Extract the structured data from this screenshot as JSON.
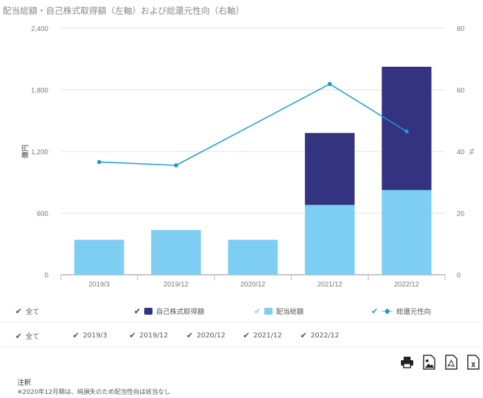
{
  "title": "配当総額・自己株式取得額（左軸）および総還元性向（右軸）",
  "chart_data": {
    "type": "bar+line",
    "title": "配当総額・自己株式取得額（左軸）および総還元性向（右軸）",
    "categories": [
      "2019/3",
      "2019/12",
      "2020/12",
      "2021/12",
      "2022/12"
    ],
    "ylabel": "億円",
    "y2label": "%",
    "ylim": [
      0,
      2400
    ],
    "yticks": [
      "0",
      "600",
      "1,200",
      "1,800",
      "2,400"
    ],
    "y2lim": [
      0,
      80
    ],
    "y2ticks": [
      "0",
      "20",
      "40",
      "60",
      "80"
    ],
    "grid": true,
    "series": [
      {
        "name": "配当総額",
        "type": "bar",
        "stack": true,
        "color": "#7ecdf2",
        "values": [
          340,
          435,
          340,
          680,
          825
        ]
      },
      {
        "name": "自己株式取得額",
        "type": "bar",
        "stack": true,
        "color": "#33337f",
        "values": [
          0,
          0,
          0,
          700,
          1200
        ]
      },
      {
        "name": "総還元性向",
        "type": "line",
        "axis": "right",
        "color": "#1a9ad6",
        "values": [
          36.6,
          35.5,
          null,
          61.9,
          46.5
        ]
      }
    ]
  },
  "legend": {
    "all": "全て",
    "items": [
      {
        "label": "自己株式取得額",
        "color": "#33337f"
      },
      {
        "label": "配当総額",
        "color": "#7ecdf2"
      },
      {
        "label": "総還元性向",
        "color": "#1a9ad6"
      }
    ]
  },
  "filter": {
    "all": "全て",
    "items": [
      "2019/3",
      "2019/12",
      "2020/12",
      "2021/12",
      "2022/12"
    ]
  },
  "toolbar": [
    "print-icon",
    "image-icon",
    "pdf-icon",
    "excel-icon"
  ],
  "note": {
    "heading": "注釈",
    "text": "※2020年12月期は、純損失のため配当性向は該当なし"
  }
}
